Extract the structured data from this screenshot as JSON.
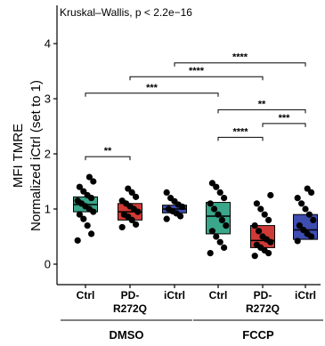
{
  "chart_data": {
    "type": "box",
    "test_label": "Kruskal–Wallis, p < 2.2e−16",
    "ylabel_line1": "MFI TMRE",
    "ylabel_line2": "Normalized iCtrl (set to 1)",
    "ylim": [
      0,
      4.5
    ],
    "yticks": [
      "0",
      "1",
      "2",
      "3",
      "4"
    ],
    "ytick_values": [
      0,
      1,
      2,
      3,
      4
    ],
    "categories": [
      {
        "label_line1": "Ctrl",
        "label_line2": "",
        "group": "DMSO",
        "color": "#3aa68a",
        "q1": 0.95,
        "median": 1.08,
        "q3": 1.22,
        "points": [
          0.43,
          0.55,
          0.7,
          0.82,
          0.9,
          0.95,
          1.0,
          1.05,
          1.1,
          1.15,
          1.2,
          1.25,
          1.32,
          1.4,
          1.5,
          1.58
        ]
      },
      {
        "label_line1": "PD-",
        "label_line2": "R272Q",
        "group": "DMSO",
        "color": "#d03a36",
        "q1": 0.8,
        "median": 0.95,
        "q3": 1.1,
        "points": [
          0.67,
          0.72,
          0.8,
          0.86,
          0.9,
          0.95,
          1.0,
          1.05,
          1.1,
          1.15,
          1.22,
          1.3,
          1.37
        ]
      },
      {
        "label_line1": "iCtrl",
        "label_line2": "",
        "group": "DMSO",
        "color": "#3d4db0",
        "q1": 0.93,
        "median": 1.0,
        "q3": 1.07,
        "points": [
          0.82,
          0.87,
          0.92,
          0.96,
          1.0,
          1.04,
          1.08,
          1.14,
          1.2,
          1.3
        ]
      },
      {
        "label_line1": "Ctrl",
        "label_line2": "",
        "group": "FCCP",
        "color": "#3aa68a",
        "q1": 0.55,
        "median": 0.87,
        "q3": 1.12,
        "points": [
          0.2,
          0.3,
          0.4,
          0.5,
          0.6,
          0.7,
          0.8,
          0.9,
          1.0,
          1.1,
          1.2,
          1.3,
          1.4,
          1.47
        ]
      },
      {
        "label_line1": "PD-",
        "label_line2": "R272Q",
        "group": "FCCP",
        "color": "#d03a36",
        "q1": 0.3,
        "median": 0.43,
        "q3": 0.7,
        "points": [
          0.15,
          0.2,
          0.25,
          0.3,
          0.35,
          0.4,
          0.45,
          0.5,
          0.6,
          0.7,
          0.8,
          0.9,
          1.0,
          1.1,
          1.25
        ]
      },
      {
        "label_line1": "iCtrl",
        "label_line2": "",
        "group": "FCCP",
        "color": "#3d4db0",
        "q1": 0.45,
        "median": 0.62,
        "q3": 0.9,
        "points": [
          0.42,
          0.5,
          0.55,
          0.62,
          0.7,
          0.8,
          0.9,
          1.0,
          1.1,
          1.2,
          1.3,
          1.37
        ]
      }
    ],
    "groups": [
      {
        "label": "DMSO",
        "members": [
          0,
          1,
          2
        ]
      },
      {
        "label": "FCCP",
        "members": [
          3,
          4,
          5
        ]
      }
    ],
    "comparisons": [
      {
        "a": 0,
        "b": 1,
        "y": 1.95,
        "label": "**"
      },
      {
        "a": 0,
        "b": 3,
        "y": 3.1,
        "label": "***"
      },
      {
        "a": 1,
        "b": 4,
        "y": 3.4,
        "label": "****"
      },
      {
        "a": 2,
        "b": 5,
        "y": 3.65,
        "label": "****"
      },
      {
        "a": 3,
        "b": 4,
        "y": 2.3,
        "label": "****"
      },
      {
        "a": 3,
        "b": 5,
        "y": 2.8,
        "label": "**"
      },
      {
        "a": 4,
        "b": 5,
        "y": 2.55,
        "label": "***"
      }
    ]
  }
}
